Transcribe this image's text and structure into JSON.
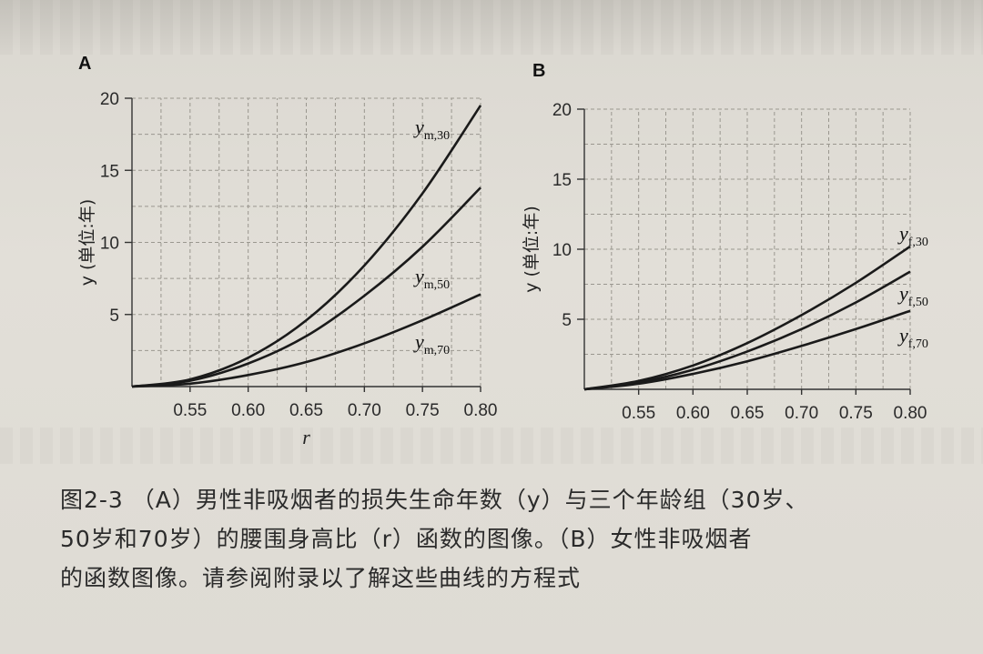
{
  "chart_data": [
    {
      "type": "line",
      "panel_label": "A",
      "xlabel": "r",
      "ylabel": "y (单位:年)",
      "xlim": [
        0.5,
        0.8
      ],
      "ylim": [
        0,
        20
      ],
      "xticks": [
        "0.55",
        "0.60",
        "0.65",
        "0.70",
        "0.75",
        "0.80"
      ],
      "yticks": [
        "5",
        "10",
        "15",
        "20"
      ],
      "grid": true,
      "series": [
        {
          "name": "y_m,30",
          "label_main": "y",
          "label_sub": "m,30",
          "x": [
            0.5,
            0.55,
            0.6,
            0.65,
            0.7,
            0.75,
            0.8
          ],
          "y": [
            0.0,
            0.5,
            2.0,
            4.6,
            8.4,
            13.4,
            19.5
          ]
        },
        {
          "name": "y_m,50",
          "label_main": "y",
          "label_sub": "m,50",
          "x": [
            0.5,
            0.55,
            0.6,
            0.65,
            0.7,
            0.75,
            0.8
          ],
          "y": [
            0.0,
            0.4,
            1.6,
            3.5,
            6.3,
            9.7,
            13.8
          ]
        },
        {
          "name": "y_m,70",
          "label_main": "y",
          "label_sub": "m,70",
          "x": [
            0.5,
            0.55,
            0.6,
            0.65,
            0.7,
            0.75,
            0.8
          ],
          "y": [
            0.0,
            0.2,
            0.8,
            1.7,
            3.0,
            4.6,
            6.4
          ]
        }
      ]
    },
    {
      "type": "line",
      "panel_label": "B",
      "xlabel": "",
      "ylabel": "y (单位:年)",
      "xlim": [
        0.5,
        0.8
      ],
      "ylim": [
        0,
        20
      ],
      "xticks": [
        "0.55",
        "0.60",
        "0.65",
        "0.70",
        "0.75",
        "0.80"
      ],
      "yticks": [
        "5",
        "10",
        "15",
        "20"
      ],
      "grid": true,
      "series": [
        {
          "name": "y_f,30",
          "label_main": "y",
          "label_sub": "f,30",
          "x": [
            0.5,
            0.55,
            0.6,
            0.65,
            0.7,
            0.75,
            0.8
          ],
          "y": [
            0.0,
            0.6,
            1.7,
            3.3,
            5.3,
            7.6,
            10.2
          ]
        },
        {
          "name": "y_f,50",
          "label_main": "y",
          "label_sub": "f,50",
          "x": [
            0.5,
            0.55,
            0.6,
            0.65,
            0.7,
            0.75,
            0.8
          ],
          "y": [
            0.0,
            0.5,
            1.4,
            2.7,
            4.3,
            6.2,
            8.4
          ]
        },
        {
          "name": "y_f,70",
          "label_main": "y",
          "label_sub": "f,70",
          "x": [
            0.5,
            0.55,
            0.6,
            0.65,
            0.7,
            0.75,
            0.8
          ],
          "y": [
            0.0,
            0.4,
            1.1,
            2.0,
            3.1,
            4.3,
            5.6
          ]
        }
      ]
    }
  ],
  "caption": {
    "line1": "图2-3 （A）男性非吸烟者的损失生命年数（y）与三个年龄组（30岁、",
    "line2": "50岁和70岁）的腰围身高比（r）函数的图像。（B）女性非吸烟者",
    "line3": "的函数图像。请参阅附录以了解这些曲线的方程式"
  }
}
